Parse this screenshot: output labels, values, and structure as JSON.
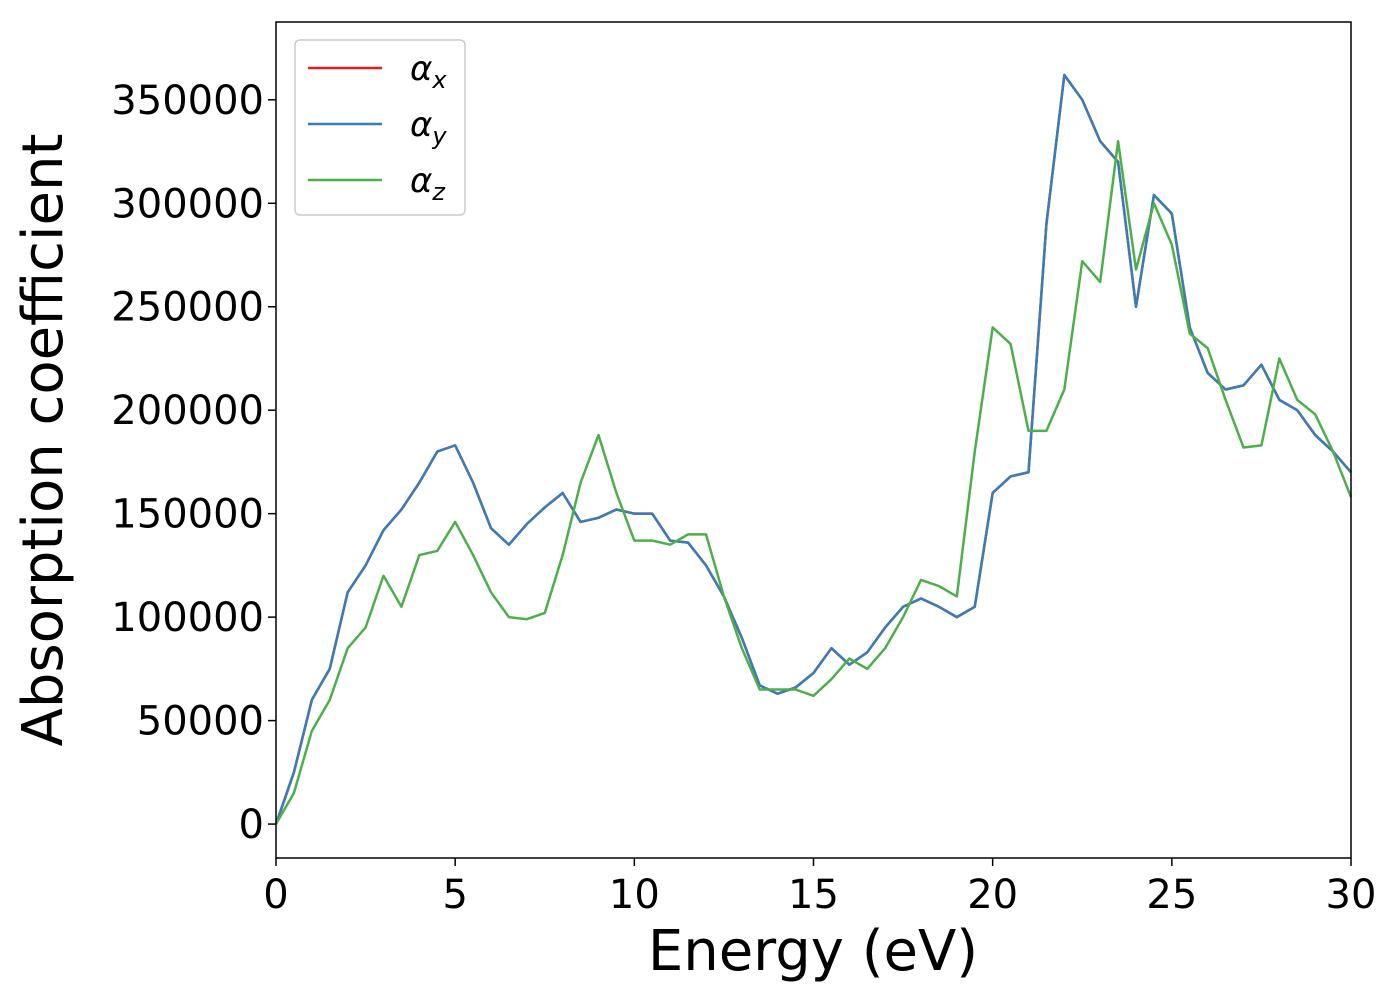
{
  "chart_data": {
    "type": "line",
    "xlabel": "Energy (eV)",
    "ylabel": "Absorption coefficient",
    "x": [
      0,
      0.5,
      1,
      1.5,
      2,
      2.5,
      3,
      3.5,
      4,
      4.5,
      5,
      5.5,
      6,
      6.5,
      7,
      7.5,
      8,
      8.5,
      9,
      9.5,
      10,
      10.5,
      11,
      11.5,
      12,
      12.5,
      13,
      13.5,
      14,
      14.5,
      15,
      15.5,
      16,
      16.5,
      17,
      17.5,
      18,
      18.5,
      19,
      19.5,
      20,
      20.5,
      21,
      21.5,
      22,
      22.5,
      23,
      23.5,
      24,
      24.5,
      25,
      25.5,
      26,
      26.5,
      27,
      27.5,
      28,
      28.5,
      29,
      29.5,
      30
    ],
    "series": [
      {
        "name": "αx",
        "color": "#e41a1c",
        "values": [
          0,
          25000,
          60000,
          75000,
          112000,
          125000,
          142000,
          152000,
          165000,
          180000,
          183000,
          165000,
          143000,
          135000,
          145000,
          153000,
          160000,
          146000,
          148000,
          152000,
          150000,
          150000,
          137000,
          136000,
          125000,
          110000,
          90000,
          67000,
          63000,
          66000,
          73000,
          85000,
          77000,
          83000,
          95000,
          105000,
          109000,
          105000,
          100000,
          105000,
          160000,
          168000,
          170000,
          290000,
          362000,
          350000,
          330000,
          320000,
          250000,
          304000,
          295000,
          240000,
          218000,
          210000,
          212000,
          222000,
          205000,
          200000,
          188000,
          180000,
          170000
        ]
      },
      {
        "name": "αy",
        "color": "#377eb8",
        "values": [
          0,
          25000,
          60000,
          75000,
          112000,
          125000,
          142000,
          152000,
          165000,
          180000,
          183000,
          165000,
          143000,
          135000,
          145000,
          153000,
          160000,
          146000,
          148000,
          152000,
          150000,
          150000,
          137000,
          136000,
          125000,
          110000,
          90000,
          67000,
          63000,
          66000,
          73000,
          85000,
          77000,
          83000,
          95000,
          105000,
          109000,
          105000,
          100000,
          105000,
          160000,
          168000,
          170000,
          290000,
          362000,
          350000,
          330000,
          320000,
          250000,
          304000,
          295000,
          240000,
          218000,
          210000,
          212000,
          222000,
          205000,
          200000,
          188000,
          180000,
          170000
        ]
      },
      {
        "name": "αz",
        "color": "#4daf4a",
        "values": [
          0,
          15000,
          45000,
          60000,
          85000,
          95000,
          120000,
          105000,
          130000,
          132000,
          146000,
          130000,
          112000,
          100000,
          99000,
          102000,
          130000,
          165000,
          188000,
          160000,
          137000,
          137000,
          135000,
          140000,
          140000,
          110000,
          85000,
          65000,
          65000,
          65000,
          62000,
          70000,
          80000,
          75000,
          85000,
          100000,
          118000,
          115000,
          110000,
          180000,
          240000,
          232000,
          190000,
          190000,
          210000,
          272000,
          262000,
          330000,
          268000,
          300000,
          280000,
          237000,
          230000,
          205000,
          182000,
          183000,
          225000,
          205000,
          198000,
          180000,
          158000
        ]
      }
    ],
    "xlim": [
      0,
      30
    ],
    "xticks": [
      0,
      5,
      10,
      15,
      20,
      25,
      30
    ],
    "ylim": [
      -16400,
      387600
    ],
    "yticks": [
      0,
      50000,
      100000,
      150000,
      200000,
      250000,
      300000,
      350000
    ],
    "legend": "upper left",
    "grid": false
  }
}
